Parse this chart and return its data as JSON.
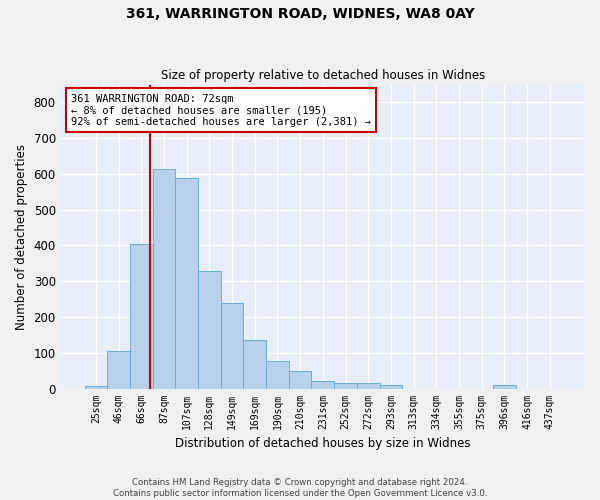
{
  "title1": "361, WARRINGTON ROAD, WIDNES, WA8 0AY",
  "title2": "Size of property relative to detached houses in Widnes",
  "xlabel": "Distribution of detached houses by size in Widnes",
  "ylabel": "Number of detached properties",
  "bin_labels": [
    "25sqm",
    "46sqm",
    "66sqm",
    "87sqm",
    "107sqm",
    "128sqm",
    "149sqm",
    "169sqm",
    "190sqm",
    "210sqm",
    "231sqm",
    "252sqm",
    "272sqm",
    "293sqm",
    "313sqm",
    "334sqm",
    "355sqm",
    "375sqm",
    "396sqm",
    "416sqm",
    "437sqm"
  ],
  "bar_values": [
    8,
    105,
    405,
    615,
    590,
    330,
    238,
    135,
    77,
    50,
    22,
    16,
    16,
    9,
    0,
    0,
    0,
    0,
    10,
    0,
    0
  ],
  "bar_color": "#b8d0e8",
  "bar_edge_color": "#6aaed6",
  "background_color": "#e8eef8",
  "grid_color": "#ffffff",
  "vline_x": 2.38,
  "vline_color": "#cc0000",
  "annotation_line1": "361 WARRINGTON ROAD: 72sqm",
  "annotation_line2": "← 8% of detached houses are smaller (195)",
  "annotation_line3": "92% of semi-detached houses are larger (2,381) →",
  "annotation_box_color": "#cc0000",
  "footer1": "Contains HM Land Registry data © Crown copyright and database right 2024.",
  "footer2": "Contains public sector information licensed under the Open Government Licence v3.0.",
  "fig_facecolor": "#f0f0f0",
  "ylim": [
    0,
    850
  ],
  "yticks": [
    0,
    100,
    200,
    300,
    400,
    500,
    600,
    700,
    800
  ]
}
